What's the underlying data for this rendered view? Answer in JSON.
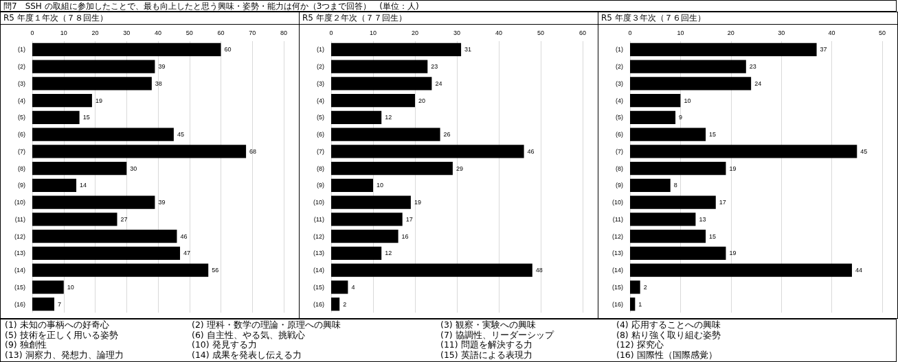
{
  "chart_data": [
    {
      "type": "other",
      "title": "問7　SSH の取組に参加したことで、最も向上したと思う興味・姿勢・能力は何か（3つまで回答）　(単位：人)",
      "annotations": [
        "(1) 未知の事柄への好奇心",
        "(2) 理科・数学の理論・原理への興味",
        "(3) 観察・実験への興味",
        "(4) 応用することへの興味",
        "(5) 技術を正しく用いる姿勢",
        "(6) 自主性、やる気、挑戦心",
        "(7) 協調性、リーダーシップ",
        "(8) 粘り強く取り組む姿勢",
        "(9) 独創性",
        "(10) 発見する力",
        "(11) 問題を解決する力",
        "(12) 探究心",
        "(13) 洞察力、発想力、論理力",
        "(14) 成果を発表し伝える力",
        "(15) 英語による表現力",
        "(16) 国際性（国際感覚）"
      ]
    },
    {
      "type": "bar",
      "orientation": "horizontal",
      "title": "R5 年度１年次（７８回生）",
      "categories": [
        "(1)",
        "(2)",
        "(3)",
        "(4)",
        "(5)",
        "(6)",
        "(7)",
        "(8)",
        "(9)",
        "(10)",
        "(11)",
        "(12)",
        "(13)",
        "(14)",
        "(15)",
        "(16)"
      ],
      "values": [
        60,
        39,
        38,
        19,
        15,
        45,
        68,
        30,
        14,
        39,
        27,
        46,
        47,
        56,
        10,
        7
      ],
      "color": "#000000",
      "xlim": [
        0,
        80
      ],
      "xticks": [
        0,
        10,
        20,
        30,
        40,
        50,
        60,
        70,
        80
      ],
      "grid": "x",
      "data_labels": true
    },
    {
      "type": "bar",
      "orientation": "horizontal",
      "title": "R5 年度２年次（７７回生）",
      "categories": [
        "(1)",
        "(2)",
        "(3)",
        "(4)",
        "(5)",
        "(6)",
        "(7)",
        "(8)",
        "(9)",
        "(10)",
        "(11)",
        "(12)",
        "(13)",
        "(14)",
        "(15)",
        "(16)"
      ],
      "values": [
        31,
        23,
        24,
        20,
        12,
        26,
        46,
        29,
        10,
        19,
        17,
        16,
        12,
        48,
        4,
        2
      ],
      "color": "#000000",
      "xlim": [
        0,
        60
      ],
      "xticks": [
        0,
        10,
        20,
        30,
        40,
        50,
        60
      ],
      "grid": "x",
      "data_labels": true
    },
    {
      "type": "bar",
      "orientation": "horizontal",
      "title": "R5 年度３年次（７６回生）",
      "categories": [
        "(1)",
        "(2)",
        "(3)",
        "(4)",
        "(5)",
        "(6)",
        "(7)",
        "(8)",
        "(9)",
        "(10)",
        "(11)",
        "(12)",
        "(13)",
        "(14)",
        "(15)",
        "(16)"
      ],
      "values": [
        37,
        23,
        24,
        10,
        9,
        15,
        45,
        19,
        8,
        17,
        13,
        15,
        19,
        44,
        2,
        1
      ],
      "color": "#000000",
      "xlim": [
        0,
        50
      ],
      "xticks": [
        0,
        10,
        20,
        30,
        40,
        50
      ],
      "grid": "x",
      "data_labels": true
    }
  ]
}
